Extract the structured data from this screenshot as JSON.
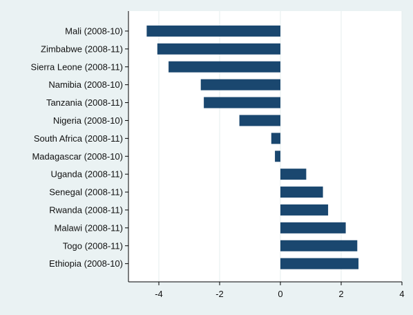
{
  "chart_data": {
    "type": "bar",
    "orientation": "horizontal",
    "categories": [
      "Mali (2008-10)",
      "Zimbabwe (2008-11)",
      "Sierra Leone (2008-11)",
      "Namibia (2008-10)",
      "Tanzania (2008-11)",
      "Nigeria (2008-10)",
      "South Africa (2008-11)",
      "Madagascar (2008-10)",
      "Uganda (2008-11)",
      "Senegal (2008-11)",
      "Rwanda (2008-11)",
      "Malawi (2008-11)",
      "Togo (2008-11)",
      "Ethiopia (2008-10)"
    ],
    "values": [
      -4.4,
      -4.05,
      -3.68,
      -2.62,
      -2.52,
      -1.35,
      -0.3,
      -0.18,
      0.85,
      1.4,
      1.57,
      2.15,
      2.53,
      2.57
    ],
    "xlim": [
      -5,
      4
    ],
    "xticks": [
      -4,
      -2,
      0,
      2,
      4
    ],
    "xtick_labels": [
      "-4",
      "-2",
      "0",
      "2",
      "4"
    ],
    "grid": "vertical",
    "bar_color": "#1a476f",
    "title": "",
    "xlabel": "",
    "ylabel": ""
  }
}
